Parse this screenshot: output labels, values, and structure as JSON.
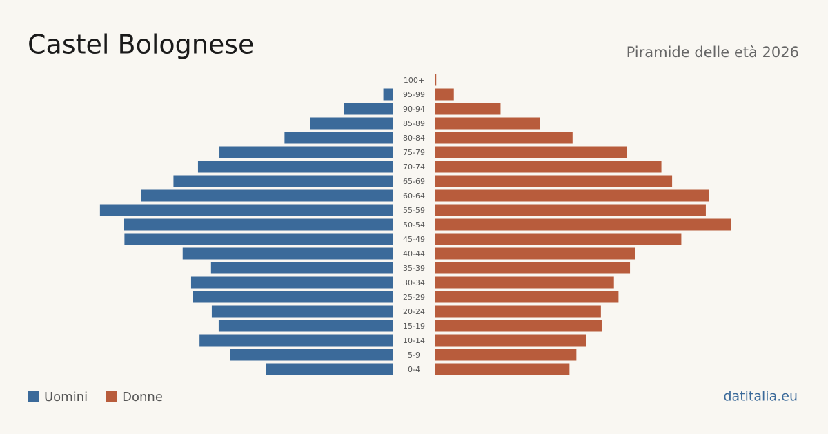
{
  "chart_data": {
    "type": "pyramid",
    "title": "Castel Bolognese",
    "subtitle": "Piramide delle età 2026",
    "source": "datitalia.eu",
    "categories": [
      "100+",
      "95-99",
      "90-94",
      "85-89",
      "80-84",
      "75-79",
      "70-74",
      "65-69",
      "60-64",
      "55-59",
      "50-54",
      "45-49",
      "40-44",
      "35-39",
      "30-34",
      "25-29",
      "20-24",
      "15-19",
      "10-14",
      "5-9",
      "0-4"
    ],
    "series": [
      {
        "name": "Uomini",
        "color": "#3b6a9a",
        "values": [
          0,
          13,
          64,
          109,
          142,
          227,
          255,
          287,
          329,
          383,
          352,
          351,
          275,
          238,
          264,
          262,
          237,
          228,
          253,
          213,
          166
        ]
      },
      {
        "name": "Donne",
        "color": "#b85c3c",
        "values": [
          2,
          25,
          86,
          137,
          180,
          251,
          296,
          310,
          358,
          354,
          387,
          322,
          262,
          255,
          234,
          240,
          217,
          218,
          198,
          185,
          176
        ]
      }
    ],
    "xlim": [
      0,
      400
    ]
  }
}
